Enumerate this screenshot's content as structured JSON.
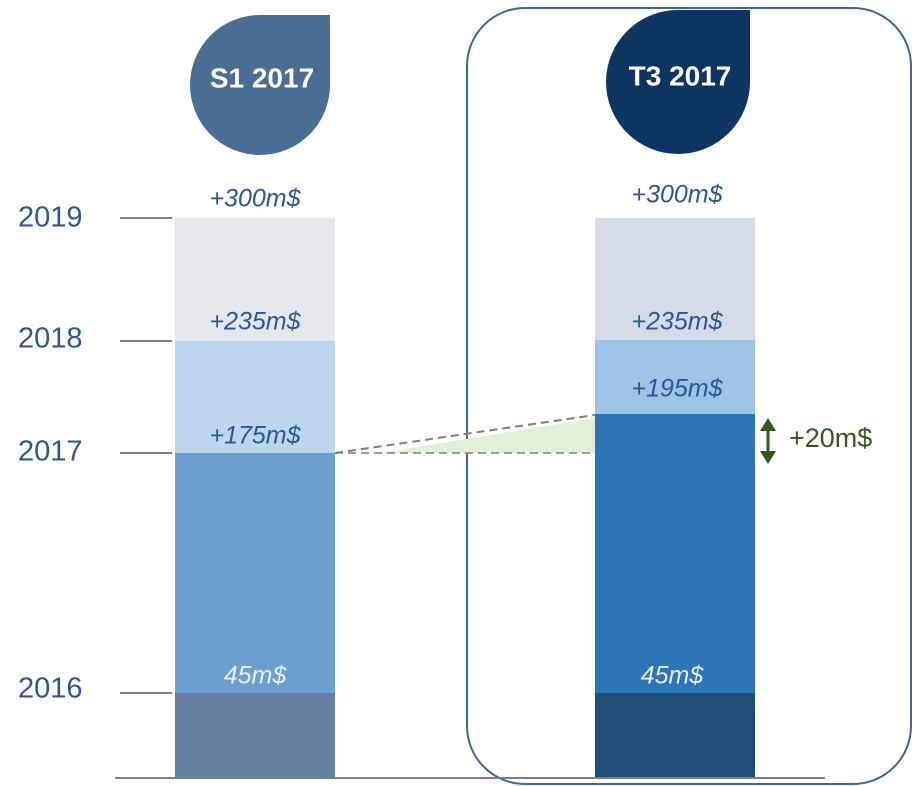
{
  "y_axis": {
    "labels": [
      "2019",
      "2018",
      "2017",
      "2016"
    ]
  },
  "columns": [
    {
      "title": "S1 2017",
      "segments": [
        "+300m$",
        "+235m$",
        "+175m$",
        "45m$"
      ]
    },
    {
      "title": "T3 2017",
      "segments": [
        "+300m$",
        "+235m$",
        "+195m$",
        "45m$"
      ]
    }
  ],
  "annotation": "+20m$"
}
